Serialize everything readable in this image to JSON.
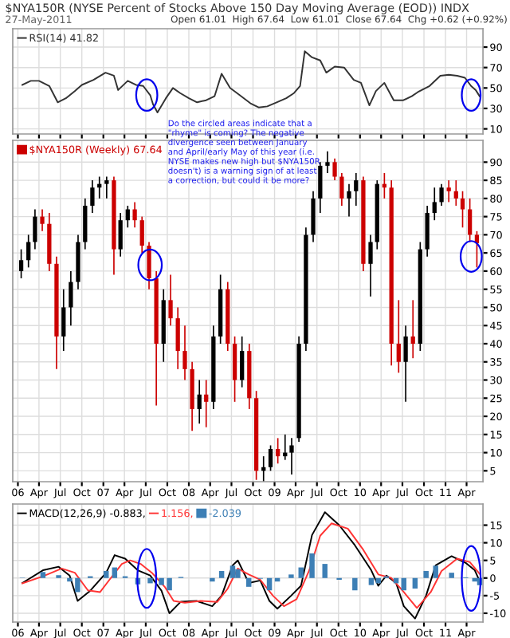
{
  "chart_data": [
    {
      "type": "line",
      "title": "$NYA150R (NYSE Percent of Stocks Above 150 Day Moving Average (EOD)) INDX",
      "subtitle": "27-May-2011",
      "annotations": [
        "Open 61.01  High 67.64  Low 61.01  Close 67.64  Chg +0.62 (+0.92%)"
      ],
      "series": [
        {
          "name": "RSI(14) 41.82",
          "color": "#333333",
          "x": [
            "2006-01-20",
            "2006-02-25",
            "2006-04-01",
            "2006-05-15",
            "2006-06-20",
            "2006-07-25",
            "2006-09-01",
            "2006-10-01",
            "2006-11-20",
            "2007-01-10",
            "2007-02-15",
            "2007-03-05",
            "2007-04-15",
            "2007-05-20",
            "2007-06-20",
            "2007-07-20",
            "2007-08-01",
            "2007-08-20",
            "2007-09-25",
            "2007-10-25",
            "2007-11-25",
            "2008-01-01",
            "2008-02-05",
            "2008-03-15",
            "2008-04-20",
            "2008-05-20",
            "2008-06-25",
            "2008-08-05",
            "2008-09-20",
            "2008-10-25",
            "2008-12-01",
            "2009-01-10",
            "2009-02-20",
            "2009-03-25",
            "2009-04-20",
            "2009-05-10",
            "2009-06-10",
            "2009-07-15",
            "2009-08-10",
            "2009-09-15",
            "2009-10-25",
            "2009-12-05",
            "2010-01-05",
            "2010-02-10",
            "2010-03-10",
            "2010-04-15",
            "2010-05-25",
            "2010-07-05",
            "2010-08-10",
            "2010-09-05",
            "2010-10-25",
            "2010-12-10",
            "2011-01-15",
            "2011-02-20",
            "2011-03-25",
            "2011-04-20",
            "2011-05-10",
            "2011-05-27"
          ],
          "values": [
            53,
            57,
            57,
            52,
            36,
            40,
            47,
            53,
            58,
            65,
            62,
            48,
            57,
            53,
            52,
            43,
            34,
            26,
            40,
            50,
            45,
            40,
            36,
            38,
            42,
            64,
            50,
            43,
            35,
            31,
            32,
            36,
            40,
            45,
            52,
            86,
            80,
            77,
            65,
            71,
            70,
            58,
            55,
            33,
            47,
            55,
            38,
            38,
            42,
            46,
            52,
            62,
            63,
            62,
            60,
            52,
            48,
            41.82
          ]
        }
      ],
      "xlim": [
        "2005-12-10",
        "2011-06-10"
      ],
      "ylim": [
        5,
        108
      ],
      "yticks": [
        10,
        30,
        50,
        70,
        90
      ],
      "grid": true,
      "legend": "top left",
      "tick_labels": "y",
      "line_style": "solid",
      "marker": "none"
    },
    {
      "type": "candlestick",
      "annotations": [
        "Do the circled areas indicate that a\n\"rhyme\" is coming? The negative\ndivergence seen between January\nand April/early May of this year (i.e.\nNYSE makes new high but $NYA150R\ndoesn't) is a warning sign of at least\na correction, but could it be more?"
      ],
      "series": [
        {
          "name": "$NYA150R (Weekly) 67.64",
          "x": [
            "2006-01-15",
            "2006-02-15",
            "2006-03-15",
            "2006-04-15",
            "2006-05-15",
            "2006-06-15",
            "2006-07-15",
            "2006-08-15",
            "2006-09-15",
            "2006-10-15",
            "2006-11-15",
            "2006-12-15",
            "2007-01-15",
            "2007-02-15",
            "2007-03-15",
            "2007-04-15",
            "2007-05-15",
            "2007-06-15",
            "2007-07-15",
            "2007-08-15",
            "2007-09-15",
            "2007-10-15",
            "2007-11-15",
            "2007-12-15",
            "2008-01-15",
            "2008-02-15",
            "2008-03-15",
            "2008-04-15",
            "2008-05-15",
            "2008-06-15",
            "2008-07-15",
            "2008-08-15",
            "2008-09-15",
            "2008-10-15",
            "2008-11-15",
            "2008-12-15",
            "2009-01-15",
            "2009-02-15",
            "2009-03-15",
            "2009-04-15",
            "2009-05-15",
            "2009-06-15",
            "2009-07-15",
            "2009-08-15",
            "2009-09-15",
            "2009-10-15",
            "2009-11-15",
            "2009-12-15",
            "2010-01-15",
            "2010-02-15",
            "2010-03-15",
            "2010-04-15",
            "2010-05-15",
            "2010-06-15",
            "2010-07-15",
            "2010-08-15",
            "2010-09-15",
            "2010-10-15",
            "2010-11-15",
            "2010-12-15",
            "2011-01-15",
            "2011-02-15",
            "2011-03-15",
            "2011-04-15",
            "2011-05-15"
          ],
          "ohlc": [
            [
              60,
              66,
              58,
              63
            ],
            [
              63,
              70,
              61,
              68
            ],
            [
              68,
              77,
              66,
              75
            ],
            [
              75,
              77,
              71,
              73
            ],
            [
              73,
              76,
              60,
              62
            ],
            [
              62,
              64,
              33,
              42
            ],
            [
              42,
              55,
              38,
              50
            ],
            [
              50,
              60,
              45,
              57
            ],
            [
              57,
              70,
              55,
              68
            ],
            [
              68,
              80,
              66,
              78
            ],
            [
              78,
              85,
              76,
              83
            ],
            [
              83,
              86,
              80,
              84
            ],
            [
              84,
              86,
              80,
              85
            ],
            [
              85,
              86,
              59,
              66
            ],
            [
              66,
              76,
              64,
              74
            ],
            [
              74,
              78,
              72,
              77
            ],
            [
              77,
              79,
              72,
              74
            ],
            [
              74,
              75,
              65,
              67
            ],
            [
              67,
              68,
              55,
              58
            ],
            [
              58,
              60,
              23,
              40
            ],
            [
              40,
              55,
              35,
              52
            ],
            [
              52,
              59,
              45,
              47
            ],
            [
              47,
              50,
              33,
              38
            ],
            [
              38,
              45,
              30,
              33
            ],
            [
              33,
              35,
              16,
              22
            ],
            [
              22,
              30,
              18,
              26
            ],
            [
              26,
              30,
              17,
              24
            ],
            [
              24,
              45,
              22,
              42
            ],
            [
              42,
              59,
              40,
              55
            ],
            [
              55,
              57,
              38,
              40
            ],
            [
              40,
              42,
              24,
              30
            ],
            [
              30,
              42,
              28,
              38
            ],
            [
              38,
              40,
              22,
              25
            ],
            [
              25,
              27,
              2.5,
              5
            ],
            [
              5,
              9,
              2,
              6
            ],
            [
              6,
              12,
              5,
              11
            ],
            [
              11,
              14,
              7,
              9
            ],
            [
              9,
              15,
              8,
              10
            ],
            [
              10,
              14,
              4,
              12
            ],
            [
              14,
              42,
              13,
              40
            ],
            [
              40,
              72,
              38,
              70
            ],
            [
              70,
              82,
              68,
              80
            ],
            [
              80,
              90,
              76,
              89
            ],
            [
              89,
              93,
              87,
              90
            ],
            [
              90,
              91,
              85,
              86
            ],
            [
              86,
              87,
              78,
              80
            ],
            [
              80,
              84,
              75,
              82
            ],
            [
              82,
              87,
              78,
              85
            ],
            [
              85,
              86,
              60,
              62
            ],
            [
              62,
              70,
              53,
              68
            ],
            [
              68,
              85,
              66,
              84
            ],
            [
              84,
              87,
              80,
              83
            ],
            [
              83,
              85,
              34,
              40
            ],
            [
              40,
              52,
              32,
              35
            ],
            [
              35,
              45,
              24,
              42
            ],
            [
              42,
              52,
              36,
              40
            ],
            [
              40,
              68,
              38,
              66
            ],
            [
              66,
              78,
              64,
              76
            ],
            [
              76,
              83,
              74,
              79
            ],
            [
              79,
              84,
              78,
              83
            ],
            [
              83,
              85,
              79,
              82
            ],
            [
              82,
              85,
              78,
              80
            ],
            [
              80,
              82,
              72,
              77
            ],
            [
              77,
              80,
              68,
              70
            ],
            [
              70,
              71,
              61,
              67.64
            ]
          ],
          "colors": [
            "#000000",
            "#000000",
            "#000000",
            "#cc0000",
            "#cc0000",
            "#cc0000",
            "#000000",
            "#000000",
            "#000000",
            "#000000",
            "#000000",
            "#000000",
            "#000000",
            "#cc0000",
            "#000000",
            "#000000",
            "#cc0000",
            "#cc0000",
            "#cc0000",
            "#cc0000",
            "#000000",
            "#cc0000",
            "#cc0000",
            "#cc0000",
            "#cc0000",
            "#000000",
            "#cc0000",
            "#000000",
            "#000000",
            "#cc0000",
            "#cc0000",
            "#000000",
            "#cc0000",
            "#cc0000",
            "#000000",
            "#000000",
            "#cc0000",
            "#000000",
            "#000000",
            "#000000",
            "#000000",
            "#000000",
            "#000000",
            "#000000",
            "#cc0000",
            "#cc0000",
            "#000000",
            "#000000",
            "#cc0000",
            "#000000",
            "#000000",
            "#cc0000",
            "#cc0000",
            "#cc0000",
            "#000000",
            "#cc0000",
            "#000000",
            "#000000",
            "#000000",
            "#000000",
            "#cc0000",
            "#cc0000",
            "#cc0000",
            "#cc0000",
            "#cc0000"
          ]
        }
      ],
      "xlim": [
        "2005-12-10",
        "2011-06-10"
      ],
      "ylim": [
        2,
        96
      ],
      "yticks": [
        5,
        10,
        15,
        20,
        25,
        30,
        35,
        40,
        45,
        50,
        55,
        60,
        65,
        70,
        75,
        80,
        85,
        90
      ],
      "xticks": [
        {
          "value": "2006-01-01",
          "label": "06"
        },
        {
          "value": "2006-04-01",
          "label": "Apr"
        },
        {
          "value": "2006-07-01",
          "label": "Jul"
        },
        {
          "value": "2006-10-01",
          "label": "Oct"
        },
        {
          "value": "2007-01-01",
          "label": "07"
        },
        {
          "value": "2007-04-01",
          "label": "Apr"
        },
        {
          "value": "2007-07-01",
          "label": "Jul"
        },
        {
          "value": "2007-10-01",
          "label": "Oct"
        },
        {
          "value": "2008-01-01",
          "label": "08"
        },
        {
          "value": "2008-04-01",
          "label": "Apr"
        },
        {
          "value": "2008-07-01",
          "label": "Jul"
        },
        {
          "value": "2008-10-01",
          "label": "Oct"
        },
        {
          "value": "2009-01-01",
          "label": "09"
        },
        {
          "value": "2009-04-01",
          "label": "Apr"
        },
        {
          "value": "2009-07-01",
          "label": "Jul"
        },
        {
          "value": "2009-10-01",
          "label": "Oct"
        },
        {
          "value": "2010-01-01",
          "label": "10"
        },
        {
          "value": "2010-04-01",
          "label": "Apr"
        },
        {
          "value": "2010-07-01",
          "label": "Jul"
        },
        {
          "value": "2010-10-01",
          "label": "Oct"
        },
        {
          "value": "2011-01-01",
          "label": "11"
        },
        {
          "value": "2011-04-01",
          "label": "Apr"
        }
      ],
      "grid": true,
      "legend": "top left"
    },
    {
      "type": "line",
      "series": [
        {
          "name": "MACD(12,26,9) -0.883,",
          "color": "#000000",
          "x": [
            "2006-01-20",
            "2006-04-18",
            "2006-06-24",
            "2006-08-10",
            "2006-09-13",
            "2006-11-06",
            "2007-01-13",
            "2007-02-18",
            "2007-04-04",
            "2007-05-28",
            "2007-07-20",
            "2007-09-06",
            "2007-10-10",
            "2007-11-28",
            "2008-02-03",
            "2008-04-10",
            "2008-05-20",
            "2008-07-06",
            "2008-07-28",
            "2008-09-13",
            "2008-11-01",
            "2008-12-10",
            "2009-01-13",
            "2009-03-13",
            "2009-04-24",
            "2009-06-10",
            "2009-08-04",
            "2009-10-04",
            "2009-12-10",
            "2010-02-18",
            "2010-03-20",
            "2010-04-24",
            "2010-06-04",
            "2010-07-07",
            "2010-08-24",
            "2010-10-10",
            "2010-11-20",
            "2011-01-27",
            "2011-03-28",
            "2011-05-06",
            "2011-05-27"
          ],
          "values": [
            -1.4,
            2.2,
            3.2,
            0.7,
            -6.5,
            -3.6,
            1.5,
            6.5,
            5.5,
            2.2,
            0.7,
            -3.6,
            -10,
            -6.7,
            -6.5,
            -8,
            -5,
            3.6,
            5,
            -1.4,
            -0.7,
            -6.5,
            -8.7,
            -5,
            -2.2,
            12.2,
            18.7,
            15,
            9.3,
            2.2,
            -2.2,
            0.7,
            -1.4,
            -8,
            -11.5,
            -5,
            3.6,
            6.2,
            4.3,
            2.2,
            -0.883
          ]
        },
        {
          "name": "1.156,",
          "color": "#ff3333",
          "x": [
            "2006-01-20",
            "2006-04-18",
            "2006-07-07",
            "2006-09-01",
            "2006-10-27",
            "2006-12-18",
            "2007-01-27",
            "2007-03-21",
            "2007-04-25",
            "2007-06-09",
            "2007-07-27",
            "2007-09-20",
            "2007-10-28",
            "2007-12-15",
            "2008-02-20",
            "2008-05-01",
            "2008-06-15",
            "2008-07-28",
            "2008-09-13",
            "2008-11-01",
            "2008-12-25",
            "2009-02-10",
            "2009-04-05",
            "2009-05-28",
            "2009-07-15",
            "2009-09-01",
            "2009-11-10",
            "2010-01-15",
            "2010-03-20",
            "2010-05-15",
            "2010-07-07",
            "2010-09-01",
            "2010-10-30",
            "2010-12-15",
            "2011-02-20",
            "2011-04-15",
            "2011-05-27"
          ],
          "values": [
            -1.5,
            0.5,
            2.7,
            1.5,
            -3.5,
            -4,
            -0.5,
            4,
            5,
            4,
            1.5,
            -2.5,
            -6.5,
            -7,
            -6.5,
            -6.8,
            -3,
            2.7,
            1,
            -0.5,
            -5,
            -8,
            -6,
            2,
            12,
            15.5,
            14,
            8,
            1,
            0,
            -4,
            -8.5,
            -4,
            2,
            5.5,
            4.5,
            1.156
          ]
        },
        {
          "name": "-2.039",
          "color": "#3d7fb5",
          "type": "bar",
          "x": [
            "2006-01-20",
            "2006-04-18",
            "2006-06-24",
            "2006-08-10",
            "2006-09-13",
            "2006-11-06",
            "2007-01-13",
            "2007-02-18",
            "2007-04-04",
            "2007-05-28",
            "2007-07-20",
            "2007-09-06",
            "2007-10-10",
            "2007-11-28",
            "2008-02-03",
            "2008-04-10",
            "2008-05-20",
            "2008-07-06",
            "2008-07-28",
            "2008-09-13",
            "2008-11-01",
            "2008-12-10",
            "2009-01-13",
            "2009-03-13",
            "2009-04-24",
            "2009-06-10",
            "2009-08-04",
            "2009-10-04",
            "2009-12-10",
            "2010-02-18",
            "2010-03-20",
            "2010-04-24",
            "2010-06-04",
            "2010-07-07",
            "2010-08-24",
            "2010-10-10",
            "2010-11-20",
            "2011-01-27",
            "2011-03-28",
            "2011-05-06",
            "2011-05-27"
          ],
          "values": [
            0.1,
            1.7,
            0.8,
            -1,
            -4,
            0.5,
            2,
            3,
            0.5,
            -1.8,
            -1.5,
            -2,
            -3.5,
            0.3,
            0,
            -1,
            2,
            3.5,
            2.5,
            -2.5,
            -0.2,
            -3.5,
            -1,
            1,
            3,
            7,
            4,
            -0.5,
            -3.5,
            -2,
            -1.5,
            0.5,
            -1.5,
            -3.5,
            -3,
            2,
            3.5,
            1.5,
            0.2,
            -1,
            -2.039
          ]
        }
      ],
      "xlim": [
        "2005-12-10",
        "2011-06-10"
      ],
      "ylim": [
        -12.5,
        21
      ],
      "yticks": [
        -10,
        -5,
        0,
        5,
        10,
        15
      ],
      "xticks": [
        {
          "value": "2006-01-01",
          "label": "06"
        },
        {
          "value": "2006-04-01",
          "label": "Apr"
        },
        {
          "value": "2006-07-01",
          "label": "Jul"
        },
        {
          "value": "2006-10-01",
          "label": "Oct"
        },
        {
          "value": "2007-01-01",
          "label": "07"
        },
        {
          "value": "2007-04-01",
          "label": "Apr"
        },
        {
          "value": "2007-07-01",
          "label": "Jul"
        },
        {
          "value": "2007-10-01",
          "label": "Oct"
        },
        {
          "value": "2008-01-01",
          "label": "08"
        },
        {
          "value": "2008-04-01",
          "label": "Apr"
        },
        {
          "value": "2008-07-01",
          "label": "Jul"
        },
        {
          "value": "2008-10-01",
          "label": "Oct"
        },
        {
          "value": "2009-01-01",
          "label": "09"
        },
        {
          "value": "2009-04-01",
          "label": "Apr"
        },
        {
          "value": "2009-07-01",
          "label": "Jul"
        },
        {
          "value": "2009-10-01",
          "label": "Oct"
        },
        {
          "value": "2010-01-01",
          "label": "10"
        },
        {
          "value": "2010-04-01",
          "label": "Apr"
        },
        {
          "value": "2010-07-01",
          "label": "Jul"
        },
        {
          "value": "2010-10-01",
          "label": "Oct"
        },
        {
          "value": "2011-01-01",
          "label": "11"
        },
        {
          "value": "2011-04-01",
          "label": "Apr"
        }
      ],
      "grid": true,
      "legend": "top left",
      "line_style": "solid",
      "marker": "none"
    }
  ]
}
